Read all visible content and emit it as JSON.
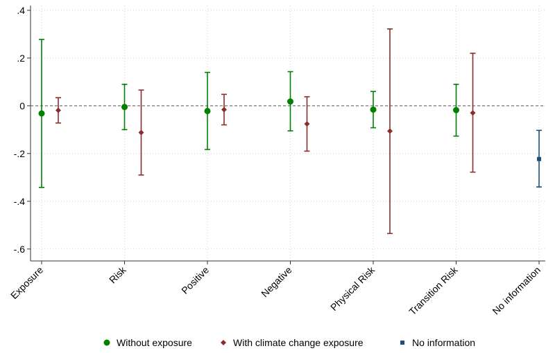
{
  "chart_data": {
    "type": "scatter",
    "categories": [
      "Exposure",
      "Risk",
      "Positive",
      "Negative",
      "Physical Risk",
      "Transition Risk",
      "No information"
    ],
    "ylim": [
      -0.65,
      0.42
    ],
    "yticks": [
      0.4,
      0.2,
      0,
      -0.2,
      -0.4,
      -0.6
    ],
    "ytick_labels": [
      ".4",
      ".2",
      "0",
      "-.2",
      "-.4",
      "-.6"
    ],
    "reference_line": 0,
    "grid": true,
    "legend_position": "bottom",
    "series": [
      {
        "name": "Without exposure",
        "color": "#008000",
        "marker": "circle",
        "points": [
          {
            "category": "Exposure",
            "value": -0.032,
            "lower": -0.342,
            "upper": 0.278
          },
          {
            "category": "Risk",
            "value": -0.005,
            "lower": -0.1,
            "upper": 0.09
          },
          {
            "category": "Positive",
            "value": -0.022,
            "lower": -0.183,
            "upper": 0.14
          },
          {
            "category": "Negative",
            "value": 0.018,
            "lower": -0.105,
            "upper": 0.143
          },
          {
            "category": "Physical Risk",
            "value": -0.016,
            "lower": -0.092,
            "upper": 0.06
          },
          {
            "category": "Transition Risk",
            "value": -0.018,
            "lower": -0.127,
            "upper": 0.09
          }
        ]
      },
      {
        "name": "With climate change exposure",
        "color": "#8b2c2c",
        "marker": "diamond",
        "points": [
          {
            "category": "Exposure",
            "value": -0.019,
            "lower": -0.072,
            "upper": 0.034
          },
          {
            "category": "Risk",
            "value": -0.112,
            "lower": -0.29,
            "upper": 0.066
          },
          {
            "category": "Positive",
            "value": -0.016,
            "lower": -0.08,
            "upper": 0.048
          },
          {
            "category": "Negative",
            "value": -0.076,
            "lower": -0.19,
            "upper": 0.038
          },
          {
            "category": "Physical Risk",
            "value": -0.106,
            "lower": -0.535,
            "upper": 0.322
          },
          {
            "category": "Transition Risk",
            "value": -0.03,
            "lower": -0.278,
            "upper": 0.22
          }
        ]
      },
      {
        "name": "No information",
        "color": "#1f4e79",
        "marker": "square",
        "points": [
          {
            "category": "No information",
            "value": -0.223,
            "lower": -0.34,
            "upper": -0.103
          }
        ]
      }
    ]
  }
}
